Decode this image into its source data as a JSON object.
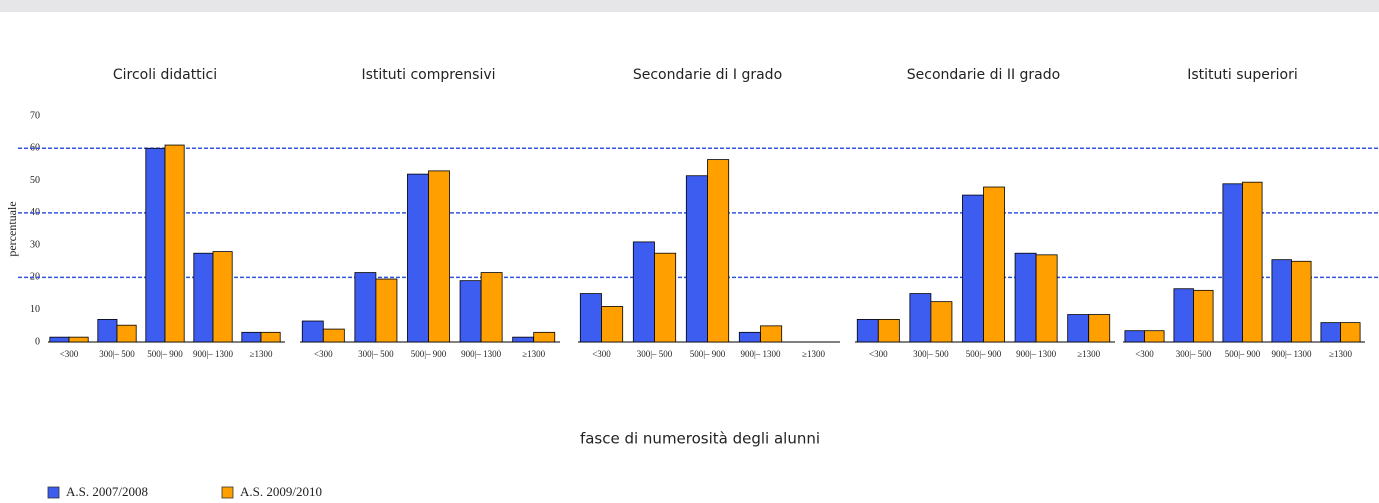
{
  "chart_data": {
    "type": "bar",
    "ylabel": "percentuale",
    "xlabel": "fasce di numerosità degli alunni",
    "ylim": [
      0,
      70
    ],
    "yticks": [
      0,
      10,
      20,
      30,
      40,
      50,
      60,
      70
    ],
    "grid_lines": [
      20,
      40,
      60
    ],
    "categories": [
      "<300",
      "300|– 500",
      "500|– 900",
      "900|– 1300",
      "≥1300"
    ],
    "series": [
      {
        "name": "A.S. 2007/2008",
        "color": "#3d5cf0"
      },
      {
        "name": "A.S. 2009/2010",
        "color": "#ffa000"
      }
    ],
    "panels": [
      {
        "title": "Circoli didattici",
        "values": [
          [
            1.5,
            7,
            60,
            27.5,
            3
          ],
          [
            1.5,
            5.2,
            61,
            28,
            3
          ]
        ]
      },
      {
        "title": "Istituti comprensivi",
        "values": [
          [
            6.5,
            21.5,
            52,
            19,
            1.5
          ],
          [
            4,
            19.5,
            53,
            21.5,
            3
          ]
        ]
      },
      {
        "title": "Secondarie di I grado",
        "values": [
          [
            15,
            31,
            51.5,
            3,
            0
          ],
          [
            11,
            27.5,
            56.5,
            5,
            0
          ]
        ]
      },
      {
        "title": "Secondarie di II grado",
        "values": [
          [
            7,
            15,
            45.5,
            27.5,
            8.5
          ],
          [
            7,
            12.5,
            48,
            27,
            8.5
          ]
        ]
      },
      {
        "title": "Istituti superiori",
        "values": [
          [
            3.5,
            16.5,
            49,
            25.5,
            6
          ],
          [
            3.5,
            16,
            49.5,
            25,
            6
          ]
        ]
      }
    ]
  }
}
